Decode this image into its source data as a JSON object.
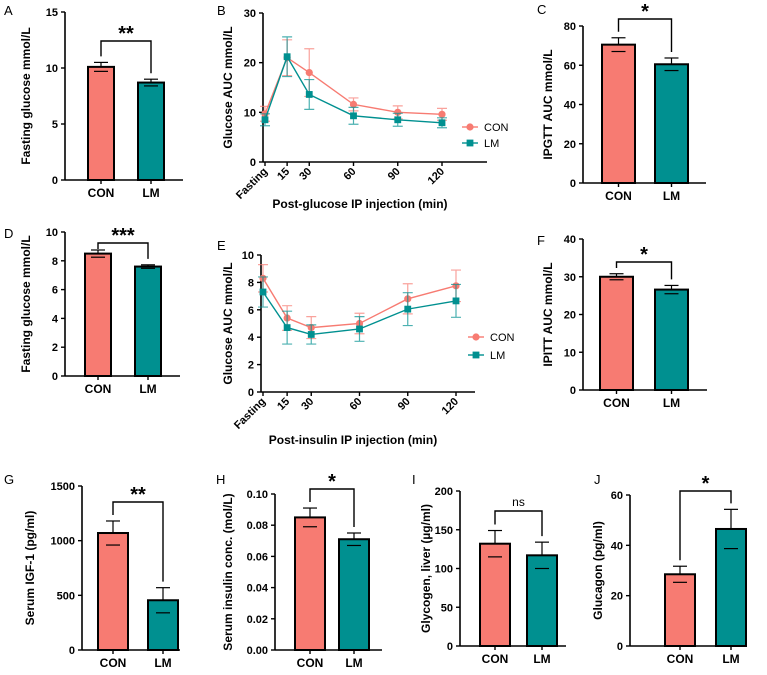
{
  "colors": {
    "CON": "#f77b72",
    "LM": "#009090",
    "axis": "#000000"
  },
  "chart_data": [
    {
      "id": "A",
      "type": "bar",
      "panel_label": "A",
      "ylabel": "Fasting glucose mmol/L",
      "ylim": [
        0,
        15
      ],
      "yticks": [
        0,
        5,
        10,
        15
      ],
      "categories": [
        "CON",
        "LM"
      ],
      "values": [
        10.1,
        8.7
      ],
      "errors": [
        0.4,
        0.3
      ],
      "significance": "**"
    },
    {
      "id": "B",
      "type": "line",
      "panel_label": "B",
      "ylabel": "Glucose AUC mmol/L",
      "xlabel": "Post-glucose IP injection (min)",
      "ylim": [
        0,
        30
      ],
      "yticks": [
        0,
        10,
        20,
        30
      ],
      "x": [
        0,
        15,
        30,
        60,
        90,
        120
      ],
      "xtick_labels": [
        "Fasting",
        "15",
        "30",
        "60",
        "90",
        "120"
      ],
      "legend": "right",
      "series": [
        {
          "name": "CON",
          "marker": "circle",
          "values": [
            9.7,
            21.0,
            18.0,
            11.6,
            10.0,
            9.6
          ],
          "errors": [
            1.5,
            3.6,
            4.8,
            1.3,
            1.3,
            1.2
          ]
        },
        {
          "name": "LM",
          "marker": "square",
          "values": [
            8.5,
            21.2,
            13.6,
            9.3,
            8.5,
            7.9
          ],
          "errors": [
            1.2,
            4.0,
            3.0,
            1.7,
            1.3,
            1.0
          ]
        }
      ]
    },
    {
      "id": "C",
      "type": "bar",
      "panel_label": "C",
      "ylabel": "IPGTT AUC mmol/L",
      "ylim": [
        0,
        80
      ],
      "yticks": [
        0,
        20,
        40,
        60,
        80
      ],
      "categories": [
        "CON",
        "LM"
      ],
      "values": [
        70.5,
        60.5
      ],
      "errors": [
        3.5,
        3.2
      ],
      "significance": "*"
    },
    {
      "id": "D",
      "type": "bar",
      "panel_label": "D",
      "ylabel": "Fasting glucose mmol/L",
      "ylim": [
        0,
        10
      ],
      "yticks": [
        0,
        2,
        4,
        6,
        8,
        10
      ],
      "categories": [
        "CON",
        "LM"
      ],
      "values": [
        8.5,
        7.6
      ],
      "errors": [
        0.25,
        0.12
      ],
      "significance": "***"
    },
    {
      "id": "E",
      "type": "line",
      "panel_label": "E",
      "ylabel": "Glucose AUC mmol/L",
      "xlabel": "Post-insulin IP injection (min)",
      "ylim": [
        0,
        10
      ],
      "yticks": [
        0,
        2,
        4,
        6,
        8,
        10
      ],
      "x": [
        0,
        15,
        30,
        60,
        90,
        120
      ],
      "xtick_labels": [
        "Fasting",
        "15",
        "30",
        "60",
        "90",
        "120"
      ],
      "legend": "right",
      "series": [
        {
          "name": "CON",
          "marker": "circle",
          "values": [
            8.3,
            5.4,
            4.7,
            5.0,
            6.8,
            7.75
          ],
          "errors": [
            1.0,
            0.9,
            0.8,
            0.75,
            1.1,
            1.15
          ]
        },
        {
          "name": "LM",
          "marker": "square",
          "values": [
            7.3,
            4.7,
            4.2,
            4.6,
            6.05,
            6.65
          ],
          "errors": [
            1.1,
            1.2,
            0.7,
            0.9,
            1.2,
            1.2
          ]
        }
      ]
    },
    {
      "id": "F",
      "type": "bar",
      "panel_label": "F",
      "ylabel": "IPITT AUC mmol/L",
      "ylim": [
        0,
        40
      ],
      "yticks": [
        0,
        10,
        20,
        30,
        40
      ],
      "categories": [
        "CON",
        "LM"
      ],
      "values": [
        30.0,
        26.6
      ],
      "errors": [
        0.8,
        1.1
      ],
      "significance": "*"
    },
    {
      "id": "G",
      "type": "bar",
      "panel_label": "G",
      "ylabel": "Serum IGF-1 (pg/ml)",
      "ylim": [
        0,
        1500
      ],
      "yticks": [
        0,
        500,
        1000,
        1500
      ],
      "categories": [
        "CON",
        "LM"
      ],
      "values": [
        1070,
        455
      ],
      "errors": [
        110,
        115
      ],
      "significance": "**"
    },
    {
      "id": "H",
      "type": "bar",
      "panel_label": "H",
      "ylabel": "Serum insulin conc. (mol/L)",
      "ylim": [
        0,
        0.1
      ],
      "yticks": [
        "0.00",
        "0.02",
        "0.04",
        "0.06",
        "0.08",
        "0.10"
      ],
      "categories": [
        "CON",
        "LM"
      ],
      "values": [
        0.085,
        0.071
      ],
      "errors": [
        0.006,
        0.004
      ],
      "significance": "*"
    },
    {
      "id": "I",
      "type": "bar",
      "panel_label": "I",
      "ylabel": "Glycogen, liver (µg/ml)",
      "ylim": [
        0,
        200
      ],
      "yticks": [
        0,
        50,
        100,
        150,
        200
      ],
      "categories": [
        "CON",
        "LM"
      ],
      "values": [
        132,
        117
      ],
      "errors": [
        17,
        17
      ],
      "significance": "ns"
    },
    {
      "id": "J",
      "type": "bar",
      "panel_label": "J",
      "ylabel": "Glucagon (pg/ml)",
      "ylim": [
        0,
        60
      ],
      "yticks": [
        0,
        20,
        40,
        60
      ],
      "categories": [
        "CON",
        "LM"
      ],
      "values": [
        28.5,
        46.5
      ],
      "errors": [
        3.2,
        7.8
      ],
      "significance": "*"
    }
  ]
}
